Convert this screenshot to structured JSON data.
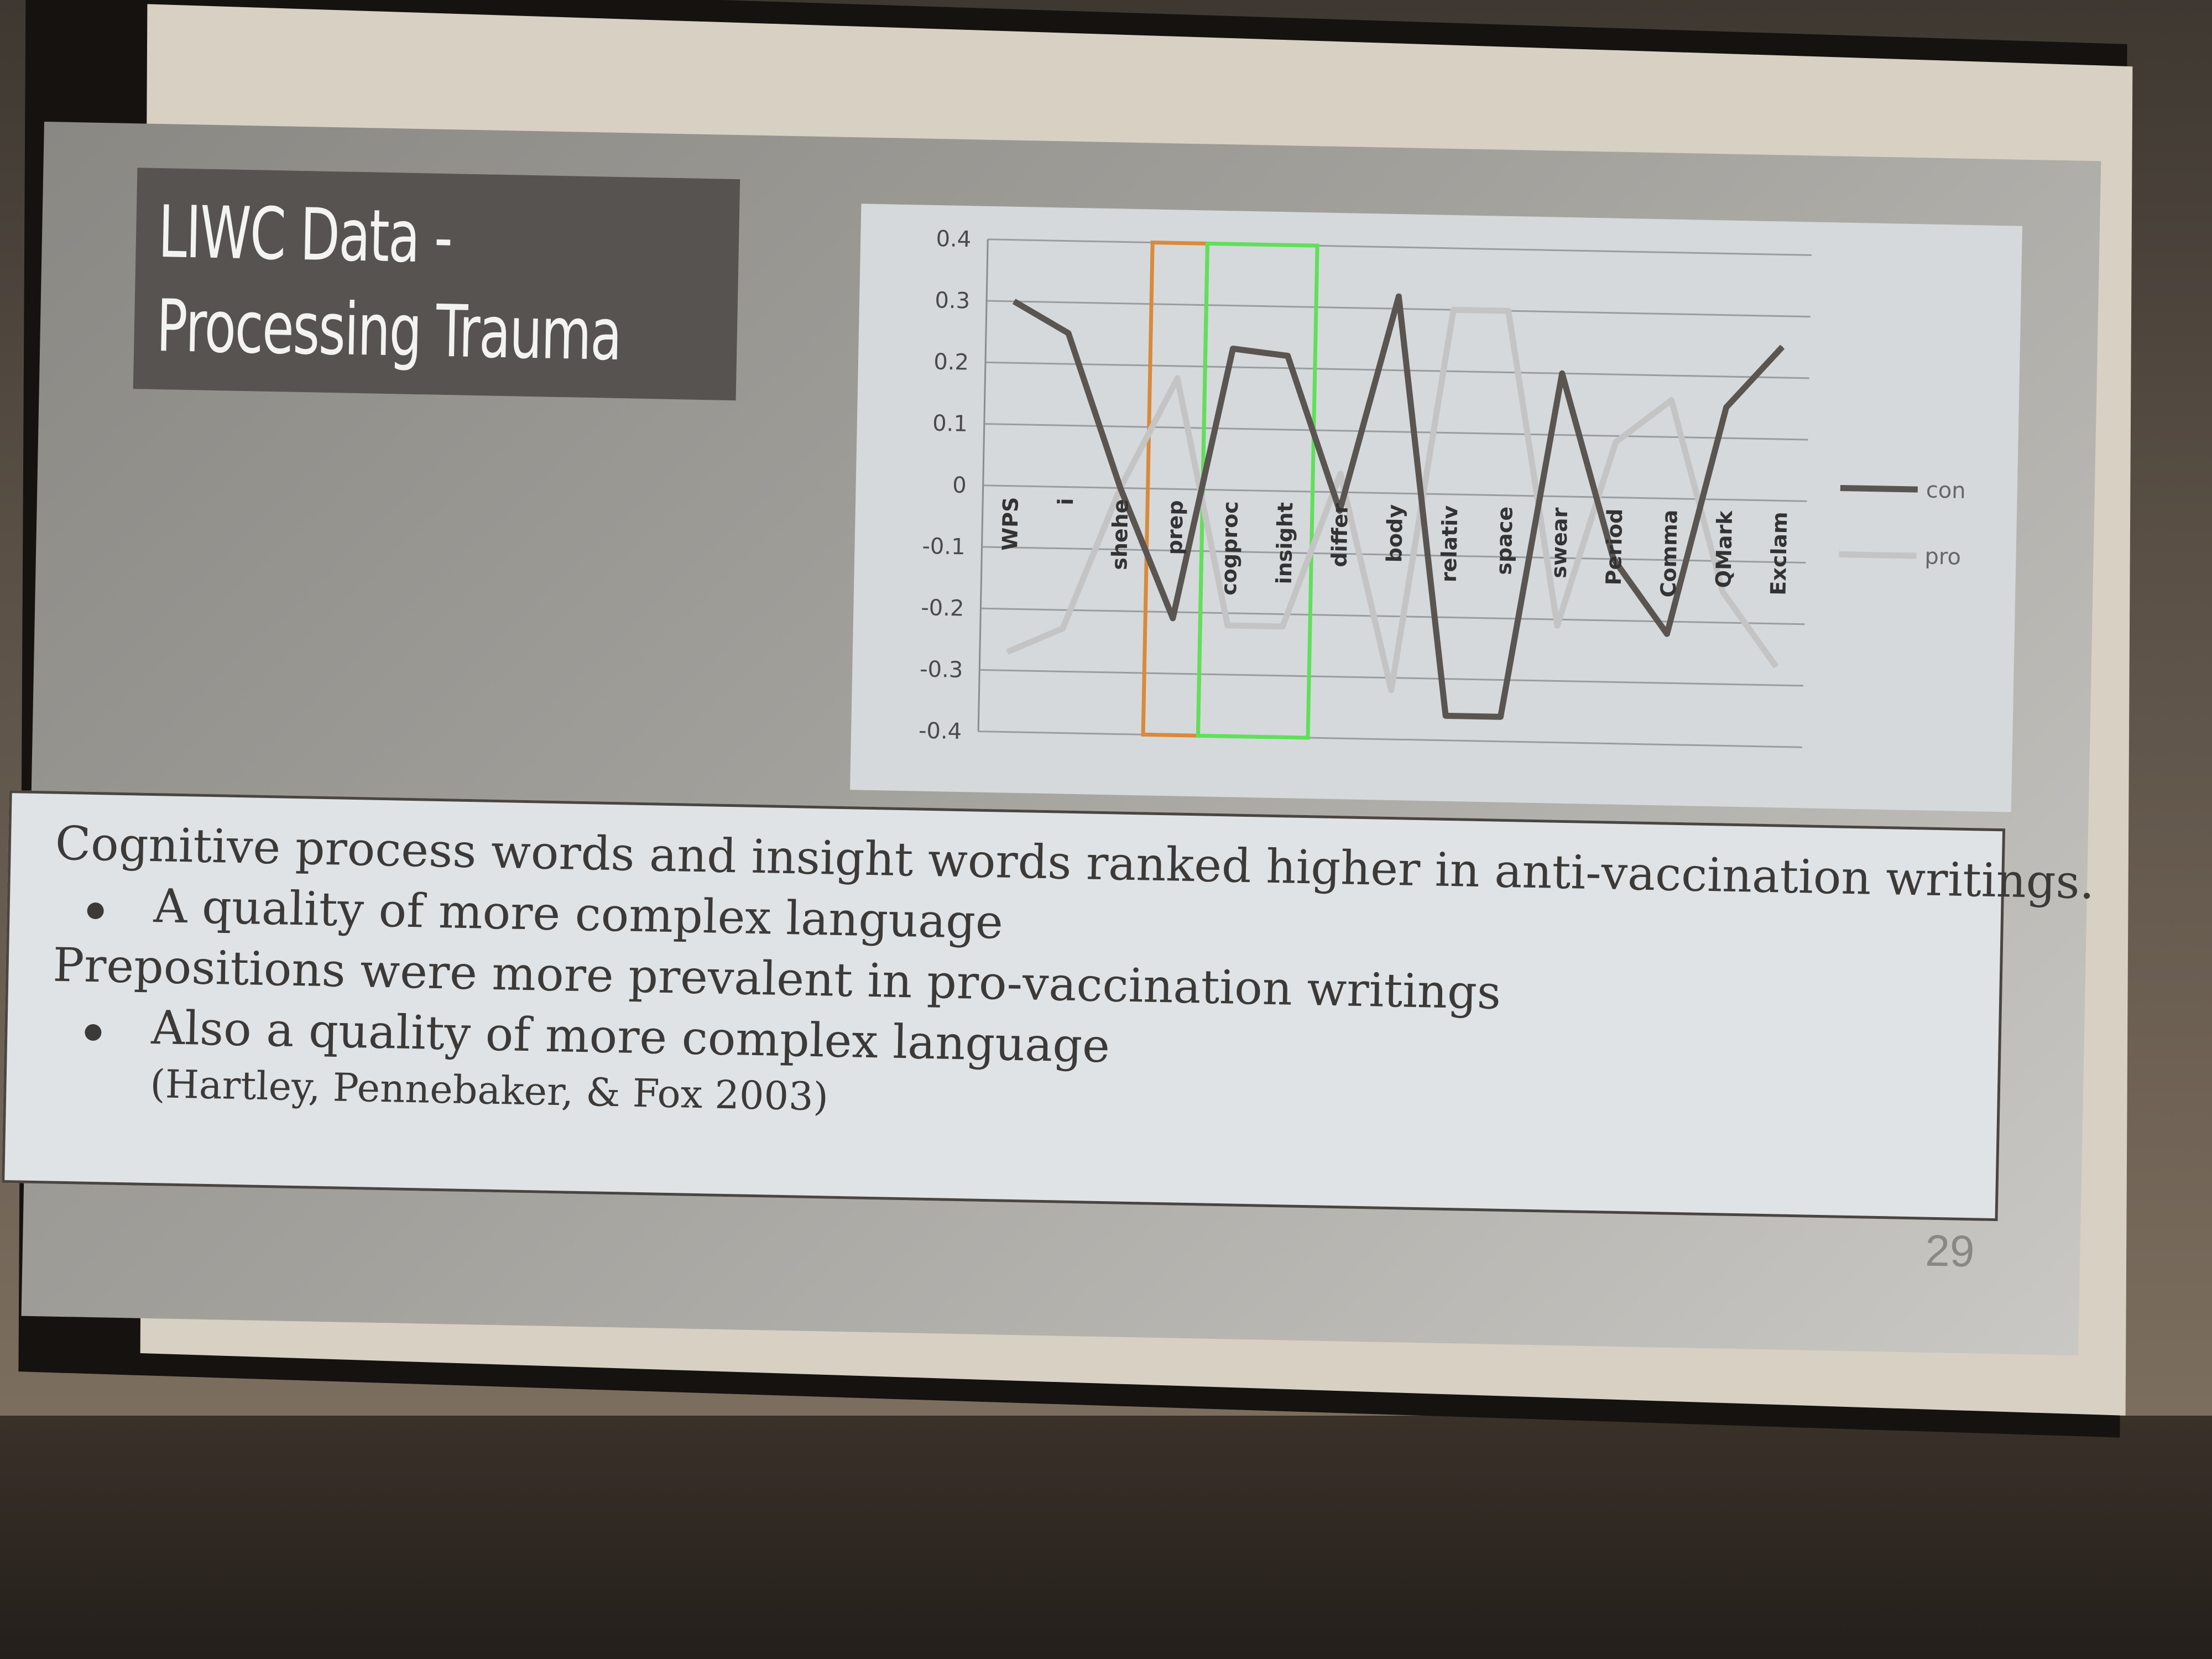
{
  "slide": {
    "title_line1": "LIWC Data -",
    "title_line2": "Processing Trauma",
    "page_number": "29",
    "bullets": {
      "line1": "Cognitive process words and insight words ranked higher in anti-vaccination writings.",
      "line2": "A quality of more complex language",
      "line3": "Prepositions were more prevalent in pro-vaccination writings",
      "line4": "Also a quality of more complex language",
      "citation": "(Hartley, Pennebaker, & Fox 2003)"
    }
  },
  "chart_data": {
    "type": "line",
    "categories": [
      "WPS",
      "i",
      "shehe",
      "prep",
      "cogproc",
      "insight",
      "differ",
      "body",
      "relativ",
      "space",
      "swear",
      "Period",
      "Comma",
      "QMark",
      "Exclam"
    ],
    "ylim": [
      -0.4,
      0.4
    ],
    "yticks": [
      "0.4",
      "0.3",
      "0.2",
      "0.1",
      "0",
      "-0.1",
      "-0.2",
      "-0.3",
      "-0.4"
    ],
    "series": [
      {
        "name": "con",
        "color": "#5a5551",
        "values": [
          0.3,
          0.25,
          0.0,
          -0.21,
          0.23,
          0.22,
          -0.03,
          0.32,
          -0.36,
          -0.36,
          0.2,
          -0.1,
          -0.22,
          0.15,
          0.25
        ]
      },
      {
        "name": "pro",
        "color": "#c4c4c4",
        "values": [
          -0.27,
          -0.23,
          0.0,
          0.18,
          -0.22,
          -0.22,
          0.03,
          -0.32,
          0.3,
          0.3,
          -0.21,
          0.09,
          0.16,
          -0.15,
          -0.27
        ]
      }
    ],
    "highlights": [
      {
        "color": "#d98a3a",
        "from": "prep",
        "to": "prep"
      },
      {
        "color": "#5fe05a",
        "from": "cogproc",
        "to": "insight"
      }
    ],
    "legend_position": "right",
    "grid": true
  }
}
